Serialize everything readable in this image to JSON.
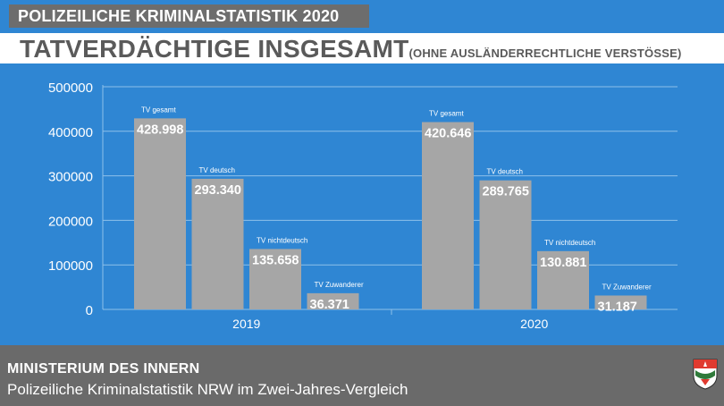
{
  "header": {
    "tag": "POLIZEILICHE KRIMINALSTATISTIK 2020",
    "headline": "TATVERDÄCHTIGE INSGESAMT",
    "headline_sub": "(OHNE AUSLÄNDERRECHTLICHE VERSTÖSSE)"
  },
  "colors": {
    "background": "#2f86d3",
    "bar": "#a6a6a6",
    "tag_bg": "#6d6d6d",
    "footer_bg": "#6a6a6a"
  },
  "chart_data": {
    "type": "bar",
    "title": "",
    "xlabel": "",
    "ylabel": "",
    "ylim": [
      0,
      500000
    ],
    "yticks": [
      "500000",
      "400000",
      "300000",
      "200000",
      "100000",
      "0"
    ],
    "grid": true,
    "groups": [
      {
        "label": "2019",
        "bars": [
          {
            "name": "TV gesamt",
            "value": 428998,
            "value_label": "428.998"
          },
          {
            "name": "TV deutsch",
            "value": 293340,
            "value_label": "293.340"
          },
          {
            "name": "TV nichtdeutsch",
            "value": 135658,
            "value_label": "135.658"
          },
          {
            "name": "TV Zuwanderer",
            "value": 36371,
            "value_label": "36.371"
          }
        ]
      },
      {
        "label": "2020",
        "bars": [
          {
            "name": "TV gesamt",
            "value": 420646,
            "value_label": "420.646"
          },
          {
            "name": "TV deutsch",
            "value": 289765,
            "value_label": "289.765"
          },
          {
            "name": "TV nichtdeutsch",
            "value": 130881,
            "value_label": "130.881"
          },
          {
            "name": "TV Zuwanderer",
            "value": 31187,
            "value_label": "31.187"
          }
        ]
      }
    ]
  },
  "footer": {
    "title": "MINISTERIUM DES INNERN",
    "subtitle": "Polizeiliche Kriminalstatistik NRW im Zwei-Jahres-Vergleich",
    "crest_icon": "nrw-coat-of-arms-icon"
  }
}
